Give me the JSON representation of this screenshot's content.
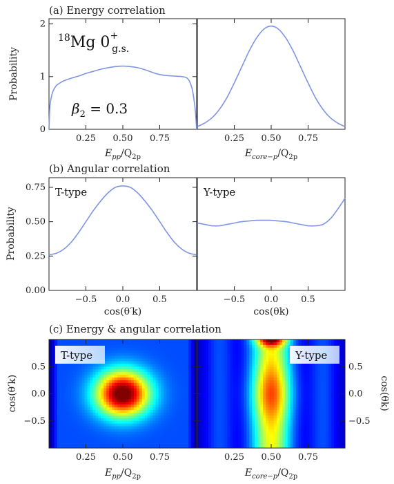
{
  "chart_data": [
    {
      "id": "a-left",
      "type": "line",
      "section_title": "(a) Energy correlation",
      "ylabel": "Probability",
      "xlabel_main": "E",
      "xlabel_sub": "pp",
      "xlabel_tail": "/Q",
      "xlabel_tail_sub": "2p",
      "xlim": [
        0,
        1
      ],
      "ylim": [
        0,
        2.1
      ],
      "xticks": [
        0.25,
        0.5,
        0.75
      ],
      "xtick_labels": [
        "0.25",
        "0.50",
        "0.75"
      ],
      "yticks": [
        0,
        1,
        2
      ],
      "ytick_labels": [
        "0",
        "1",
        "2"
      ],
      "annotation_nucleus_mass": "18",
      "annotation_nucleus": "Mg 0",
      "annotation_nucleus_sup": "+",
      "annotation_nucleus_sub": "g.s.",
      "annotation_beta": "β",
      "annotation_beta_sub": "2",
      "annotation_beta_value": " = 0.3",
      "series": [
        {
          "x": [
            0.0,
            0.005,
            0.01,
            0.02,
            0.03,
            0.05,
            0.08,
            0.1,
            0.15,
            0.2,
            0.25,
            0.3,
            0.35,
            0.4,
            0.45,
            0.5,
            0.55,
            0.6,
            0.65,
            0.7,
            0.75,
            0.8,
            0.85,
            0.9,
            0.93,
            0.95,
            0.97,
            0.98,
            0.99,
            1.0
          ],
          "y": [
            0.0,
            0.38,
            0.52,
            0.66,
            0.74,
            0.83,
            0.89,
            0.92,
            0.97,
            1.01,
            1.06,
            1.1,
            1.14,
            1.17,
            1.19,
            1.2,
            1.19,
            1.17,
            1.13,
            1.08,
            1.04,
            1.02,
            1.01,
            1.0,
            0.98,
            0.92,
            0.76,
            0.6,
            0.38,
            0.0
          ]
        }
      ]
    },
    {
      "id": "a-right",
      "type": "line",
      "xlabel_main": "E",
      "xlabel_sub": "core−p",
      "xlabel_tail": "/Q",
      "xlabel_tail_sub": "2p",
      "xlim": [
        0,
        1
      ],
      "ylim": [
        0,
        2.1
      ],
      "xticks": [
        0.25,
        0.5,
        0.75
      ],
      "xtick_labels": [
        "0.25",
        "0.50",
        "0.75"
      ],
      "series": [
        {
          "x": [
            0.0,
            0.05,
            0.1,
            0.15,
            0.2,
            0.25,
            0.3,
            0.35,
            0.4,
            0.45,
            0.5,
            0.55,
            0.6,
            0.65,
            0.7,
            0.75,
            0.8,
            0.85,
            0.9,
            0.95,
            1.0
          ],
          "y": [
            0.05,
            0.12,
            0.22,
            0.38,
            0.6,
            0.88,
            1.18,
            1.48,
            1.73,
            1.9,
            1.96,
            1.9,
            1.73,
            1.48,
            1.18,
            0.88,
            0.6,
            0.38,
            0.22,
            0.12,
            0.05
          ]
        }
      ]
    },
    {
      "id": "b-left",
      "type": "line",
      "section_title": "(b) Angular correlation",
      "ylabel": "Probability",
      "panel_label": "T-type",
      "xlabel": "cos(θ′k)",
      "xlim": [
        -1,
        1
      ],
      "ylim": [
        0,
        0.82
      ],
      "xticks": [
        -0.5,
        0,
        0.5
      ],
      "xtick_labels": [
        "−0.5",
        "0.0",
        "0.5"
      ],
      "yticks": [
        0,
        0.25,
        0.5,
        0.75
      ],
      "ytick_labels": [
        "0.00",
        "0.25",
        "0.50",
        "0.75"
      ],
      "series": [
        {
          "x": [
            -1.0,
            -0.9,
            -0.8,
            -0.7,
            -0.6,
            -0.5,
            -0.4,
            -0.3,
            -0.2,
            -0.1,
            0.0,
            0.1,
            0.2,
            0.3,
            0.4,
            0.5,
            0.6,
            0.7,
            0.8,
            0.9,
            1.0
          ],
          "y": [
            0.26,
            0.27,
            0.3,
            0.35,
            0.42,
            0.5,
            0.58,
            0.65,
            0.71,
            0.75,
            0.76,
            0.75,
            0.71,
            0.65,
            0.58,
            0.5,
            0.42,
            0.35,
            0.3,
            0.27,
            0.26
          ]
        }
      ]
    },
    {
      "id": "b-right",
      "type": "line",
      "panel_label": "Y-type",
      "xlabel": "cos(θk)",
      "xlim": [
        -1,
        1
      ],
      "ylim": [
        0,
        0.82
      ],
      "xticks": [
        -0.5,
        0,
        0.5
      ],
      "xtick_labels": [
        "−0.5",
        "0.0",
        "0.5"
      ],
      "series": [
        {
          "x": [
            -1.0,
            -0.9,
            -0.8,
            -0.7,
            -0.6,
            -0.5,
            -0.4,
            -0.3,
            -0.2,
            -0.1,
            0.0,
            0.1,
            0.2,
            0.3,
            0.4,
            0.5,
            0.6,
            0.7,
            0.8,
            0.9,
            1.0
          ],
          "y": [
            0.49,
            0.48,
            0.47,
            0.47,
            0.48,
            0.49,
            0.5,
            0.505,
            0.51,
            0.51,
            0.51,
            0.505,
            0.5,
            0.49,
            0.48,
            0.47,
            0.47,
            0.48,
            0.52,
            0.59,
            0.67
          ]
        }
      ]
    },
    {
      "id": "c-left",
      "type": "heatmap",
      "section_title": "(c) Energy & angular correlation",
      "panel_label": "T-type",
      "ylabel": "cos(θ′k)",
      "xlabel_main": "E",
      "xlabel_sub": "pp",
      "xlabel_tail": "/Q",
      "xlabel_tail_sub": "2p",
      "xlim": [
        0,
        1
      ],
      "ylim": [
        -1,
        1
      ],
      "xticks": [
        0.25,
        0.5,
        0.75
      ],
      "xtick_labels": [
        "0.25",
        "0.50",
        "0.75"
      ],
      "yticks": [
        -0.5,
        0,
        0.5
      ],
      "ytick_labels": [
        "−0.5",
        "0.0",
        "0.5"
      ],
      "peak": {
        "x": 0.5,
        "y": 0.0
      },
      "colormap": "jet"
    },
    {
      "id": "c-right",
      "type": "heatmap",
      "panel_label": "Y-type",
      "ylabel": "cos(θk)",
      "xlabel_main": "E",
      "xlabel_sub": "core−p",
      "xlabel_tail": "/Q",
      "xlabel_tail_sub": "2p",
      "xlim": [
        0,
        1
      ],
      "ylim": [
        -1,
        1
      ],
      "xticks": [
        0.25,
        0.5,
        0.75
      ],
      "xtick_labels": [
        "0.25",
        "0.50",
        "0.75"
      ],
      "yticks": [
        -0.5,
        0,
        0.5
      ],
      "ytick_labels": [
        "−0.5",
        "0.0",
        "0.5"
      ],
      "peak": {
        "x": 0.5,
        "y": 0.0
      },
      "colormap": "jet"
    }
  ],
  "colors": {
    "curve": "#7f95e0",
    "axis": "#222222",
    "label_box": "#cfe6f7"
  }
}
